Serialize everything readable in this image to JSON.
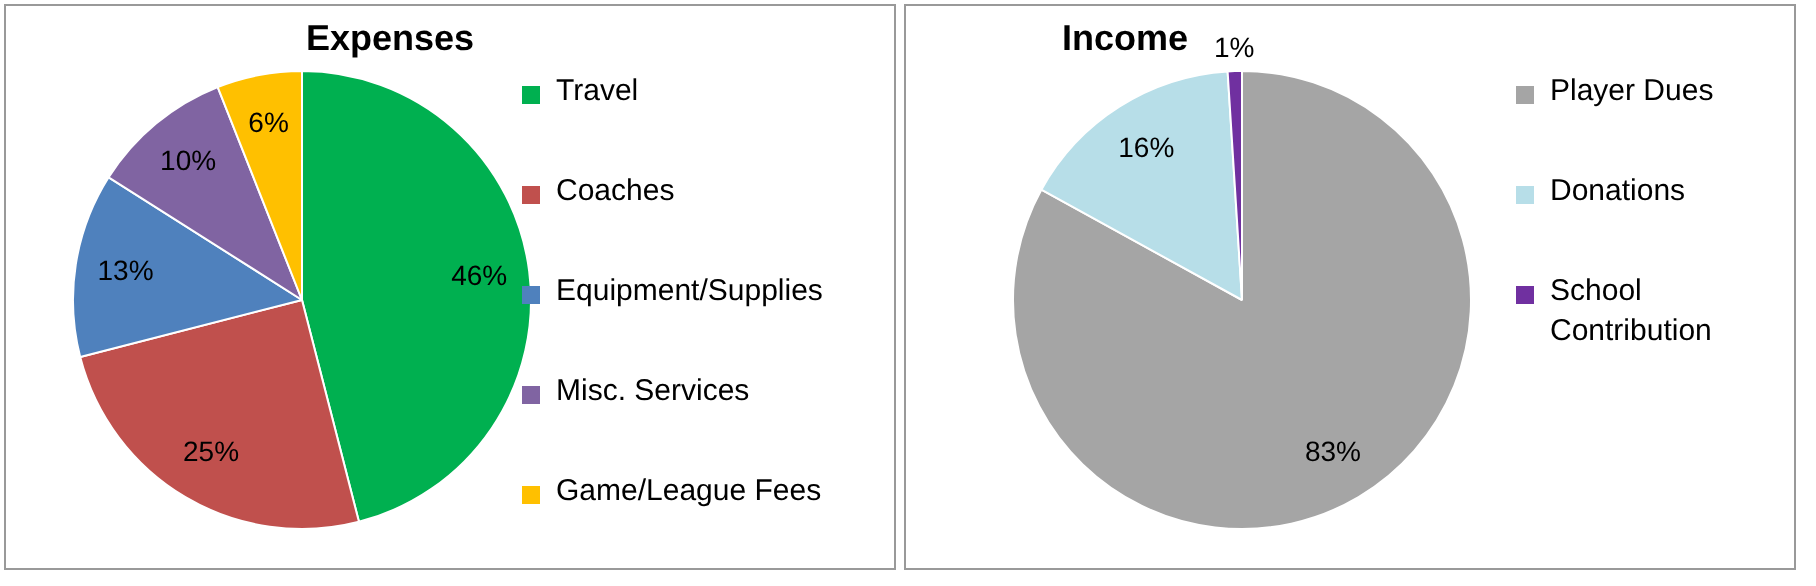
{
  "chart_data": [
    {
      "type": "pie",
      "title": "Expenses",
      "categories": [
        "Travel",
        "Coaches",
        "Equipment/Supplies",
        "Misc. Services",
        "Game/League Fees"
      ],
      "values": [
        46,
        25,
        13,
        10,
        6
      ],
      "colors": [
        "#00b050",
        "#c0504d",
        "#4f81bd",
        "#8064a2",
        "#ffc000"
      ],
      "value_labels": [
        "46%",
        "25%",
        "13%",
        "10%",
        "6%"
      ],
      "legend": "right"
    },
    {
      "type": "pie",
      "title": "Income",
      "categories": [
        "Player Dues",
        "Donations",
        "School Contribution"
      ],
      "values": [
        83,
        16,
        1
      ],
      "colors": [
        "#a5a5a5",
        "#b7dee8",
        "#7030a0"
      ],
      "value_labels": [
        "83%",
        "16%",
        "1%"
      ],
      "legend": "right"
    }
  ]
}
